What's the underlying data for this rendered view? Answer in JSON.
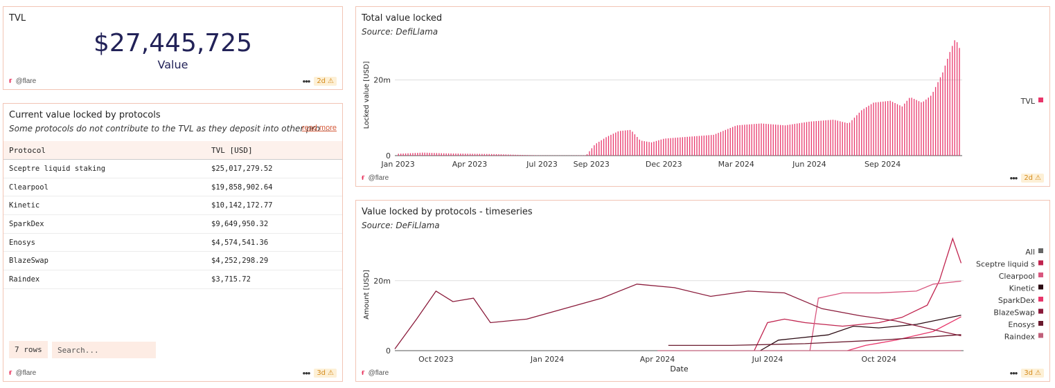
{
  "tvl_card": {
    "title": "TVL",
    "value": "$27,445,725",
    "label": "Value",
    "footer_user": "@flare",
    "badge": "2d"
  },
  "protocols_table": {
    "title": "Current value locked by protocols",
    "subtitle": "Some protocols do not contribute to the TVL as they deposit into other pro ...",
    "read_more": "read more",
    "headers": [
      "Protocol",
      "TVL [USD]"
    ],
    "rows": [
      [
        "Sceptre liquid staking",
        "$25,017,279.52"
      ],
      [
        "Clearpool",
        "$19,858,902.64"
      ],
      [
        "Kinetic",
        "$10,142,172.77"
      ],
      [
        "SparkDex",
        "$9,649,950.32"
      ],
      [
        "Enosys",
        "$4,574,541.36"
      ],
      [
        "BlazeSwap",
        "$4,252,298.29"
      ],
      [
        "Raindex",
        "$3,715.72"
      ]
    ],
    "rows_label": "7 rows",
    "search_placeholder": "Search...",
    "footer_user": "@flare",
    "badge": "3d"
  },
  "tvl_chart": {
    "title": "Total value locked",
    "subtitle": "Source: DefiLlama",
    "footer_user": "@flare",
    "badge": "2d"
  },
  "protocol_chart": {
    "title": "Value locked by protocols - timeseries",
    "subtitle": "Source: DeFiLlama",
    "footer_user": "@flare",
    "badge": "3d"
  },
  "chart_data": [
    {
      "type": "bar",
      "title": "Total value locked",
      "subtitle": "Source: DefiLlama",
      "ylabel": "Locked value [USD]",
      "xlabel": "",
      "ylim": [
        0,
        32000000
      ],
      "yticks": [
        {
          "value": 0,
          "label": "0"
        },
        {
          "value": 20000000,
          "label": "20m"
        }
      ],
      "xticks": [
        "Jan 2023",
        "Apr 2023",
        "Jul 2023",
        "Sep 2023",
        "Dec 2023",
        "Mar 2024",
        "Jun 2024",
        "Sep 2024"
      ],
      "color": "#e8356a",
      "legend": [
        "TVL"
      ],
      "legend_position": "right",
      "series": [
        {
          "name": "TVL",
          "points": [
            [
              "2023-01-01",
              500000
            ],
            [
              "2023-02-01",
              800000
            ],
            [
              "2023-03-01",
              600000
            ],
            [
              "2023-04-01",
              500000
            ],
            [
              "2023-05-01",
              400000
            ],
            [
              "2023-06-01",
              200000
            ],
            [
              "2023-07-01",
              50000
            ],
            [
              "2023-08-01",
              40000
            ],
            [
              "2023-08-25",
              100000
            ],
            [
              "2023-09-05",
              3000000
            ],
            [
              "2023-09-20",
              5000000
            ],
            [
              "2023-10-05",
              6500000
            ],
            [
              "2023-10-20",
              6800000
            ],
            [
              "2023-11-01",
              4000000
            ],
            [
              "2023-11-15",
              3500000
            ],
            [
              "2023-12-01",
              4500000
            ],
            [
              "2024-01-01",
              5000000
            ],
            [
              "2024-02-01",
              5500000
            ],
            [
              "2024-03-01",
              8000000
            ],
            [
              "2024-04-01",
              8500000
            ],
            [
              "2024-05-01",
              8000000
            ],
            [
              "2024-06-01",
              9000000
            ],
            [
              "2024-07-01",
              9500000
            ],
            [
              "2024-07-20",
              8500000
            ],
            [
              "2024-08-05",
              12000000
            ],
            [
              "2024-08-20",
              14000000
            ],
            [
              "2024-09-10",
              14500000
            ],
            [
              "2024-09-25",
              13000000
            ],
            [
              "2024-10-05",
              15500000
            ],
            [
              "2024-10-20",
              14000000
            ],
            [
              "2024-11-01",
              16000000
            ],
            [
              "2024-11-15",
              22000000
            ],
            [
              "2024-11-25",
              28000000
            ],
            [
              "2024-12-01",
              31000000
            ],
            [
              "2024-12-08",
              27445725
            ]
          ]
        }
      ]
    },
    {
      "type": "line",
      "title": "Value locked by protocols - timeseries",
      "subtitle": "Source: DeFiLlama",
      "ylabel": "Amount [USD]",
      "xlabel": "Date",
      "ylim": [
        0,
        32000000
      ],
      "yticks": [
        {
          "value": 0,
          "label": "0"
        },
        {
          "value": 20000000,
          "label": "20m"
        }
      ],
      "xticks": [
        "Oct 2023",
        "Jan 2024",
        "Apr 2024",
        "Jul 2024",
        "Oct 2024"
      ],
      "legend_position": "right",
      "series": [
        {
          "name": "All",
          "color": "#666666",
          "points": []
        },
        {
          "name": "Sceptre liquid staking",
          "color": "#c0234e",
          "points": [
            [
              "2024-06-20",
              0
            ],
            [
              "2024-07-01",
              8000000
            ],
            [
              "2024-07-15",
              9000000
            ],
            [
              "2024-08-01",
              8000000
            ],
            [
              "2024-09-01",
              7000000
            ],
            [
              "2024-10-01",
              8000000
            ],
            [
              "2024-10-20",
              9500000
            ],
            [
              "2024-11-10",
              13000000
            ],
            [
              "2024-11-20",
              20000000
            ],
            [
              "2024-12-01",
              32000000
            ],
            [
              "2024-12-08",
              25017279
            ]
          ]
        },
        {
          "name": "Clearpool",
          "color": "#d9577f",
          "points": [
            [
              "2024-08-05",
              0
            ],
            [
              "2024-08-12",
              15000000
            ],
            [
              "2024-09-01",
              16500000
            ],
            [
              "2024-10-01",
              16500000
            ],
            [
              "2024-11-01",
              17000000
            ],
            [
              "2024-11-15",
              19000000
            ],
            [
              "2024-12-08",
              19858902
            ]
          ]
        },
        {
          "name": "Kinetic",
          "color": "#2a0a12",
          "points": [
            [
              "2024-06-25",
              0
            ],
            [
              "2024-07-10",
              3000000
            ],
            [
              "2024-08-20",
              4500000
            ],
            [
              "2024-09-10",
              7000000
            ],
            [
              "2024-10-01",
              6500000
            ],
            [
              "2024-11-01",
              7500000
            ],
            [
              "2024-12-08",
              10142172
            ]
          ]
        },
        {
          "name": "SparkDex",
          "color": "#e8356a",
          "points": [
            [
              "2024-09-05",
              0
            ],
            [
              "2024-09-20",
              1500000
            ],
            [
              "2024-10-15",
              3000000
            ],
            [
              "2024-11-15",
              5500000
            ],
            [
              "2024-12-08",
              9649950
            ]
          ]
        },
        {
          "name": "BlazeSwap",
          "color": "#8a1a3a",
          "points": [
            [
              "2023-08-28",
              500000
            ],
            [
              "2023-09-15",
              9000000
            ],
            [
              "2023-10-01",
              17000000
            ],
            [
              "2023-10-15",
              14000000
            ],
            [
              "2023-11-01",
              15000000
            ],
            [
              "2023-11-15",
              8000000
            ],
            [
              "2023-12-15",
              9000000
            ],
            [
              "2024-01-15",
              12000000
            ],
            [
              "2024-02-15",
              15000000
            ],
            [
              "2024-03-15",
              19000000
            ],
            [
              "2024-04-15",
              18000000
            ],
            [
              "2024-05-15",
              15500000
            ],
            [
              "2024-06-15",
              17000000
            ],
            [
              "2024-07-15",
              16500000
            ],
            [
              "2024-08-15",
              12000000
            ],
            [
              "2024-09-15",
              10000000
            ],
            [
              "2024-10-15",
              8500000
            ],
            [
              "2024-11-15",
              6000000
            ],
            [
              "2024-12-08",
              4252298
            ]
          ]
        },
        {
          "name": "Enosys",
          "color": "#6a1a2e",
          "points": [
            [
              "2024-04-10",
              1500000
            ],
            [
              "2024-06-01",
              1500000
            ],
            [
              "2024-08-01",
              2000000
            ],
            [
              "2024-10-01",
              3000000
            ],
            [
              "2024-11-15",
              4000000
            ],
            [
              "2024-12-08",
              4574541
            ]
          ]
        },
        {
          "name": "Raindex",
          "color": "#c0607a",
          "points": [
            [
              "2024-04-01",
              0
            ],
            [
              "2024-12-08",
              3715
            ]
          ]
        }
      ]
    }
  ]
}
